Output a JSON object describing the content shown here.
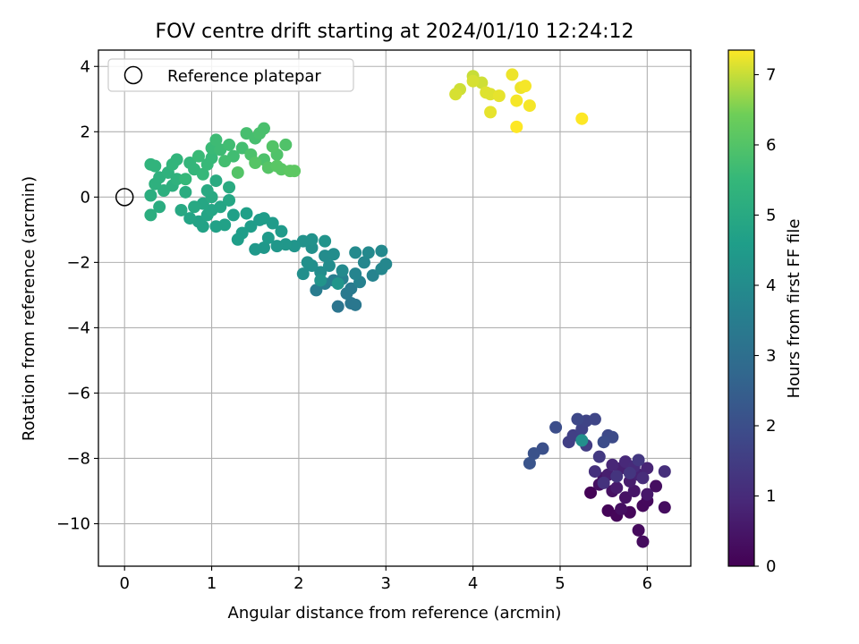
{
  "chart_data": {
    "type": "scatter",
    "title": "FOV centre drift starting at 2024/01/10 12:24:12",
    "xlabel": "Angular distance from reference (arcmin)",
    "ylabel": "Rotation from reference (arcmin)",
    "xlim": [
      -0.3,
      6.5
    ],
    "ylim": [
      -11.3,
      4.5
    ],
    "xticks": [
      0,
      1,
      2,
      3,
      4,
      5,
      6
    ],
    "yticks": [
      -10,
      -8,
      -6,
      -4,
      -2,
      0,
      2,
      4
    ],
    "grid": true,
    "legend": {
      "position": "top-left",
      "entries": [
        {
          "label": "Reference platepar",
          "marker": "open-circle"
        }
      ]
    },
    "reference_point": {
      "x": 0,
      "y": 0
    },
    "colorbar": {
      "label": "Hours from first FF file",
      "range": [
        0,
        7.35
      ],
      "ticks": [
        0,
        1,
        2,
        3,
        4,
        5,
        6,
        7
      ],
      "colormap": "viridis"
    },
    "points": [
      {
        "x": 5.35,
        "y": -9.05,
        "c": 0.05
      },
      {
        "x": 5.55,
        "y": -9.6,
        "c": 0.1
      },
      {
        "x": 5.65,
        "y": -9.75,
        "c": 0.12
      },
      {
        "x": 5.8,
        "y": -9.65,
        "c": 0.15
      },
      {
        "x": 5.95,
        "y": -9.45,
        "c": 0.18
      },
      {
        "x": 6.0,
        "y": -9.3,
        "c": 0.2
      },
      {
        "x": 5.9,
        "y": -10.2,
        "c": 0.22
      },
      {
        "x": 5.95,
        "y": -10.55,
        "c": 0.25
      },
      {
        "x": 6.2,
        "y": -9.5,
        "c": 0.28
      },
      {
        "x": 6.1,
        "y": -8.85,
        "c": 0.3
      },
      {
        "x": 5.7,
        "y": -9.55,
        "c": 0.33
      },
      {
        "x": 5.45,
        "y": -8.8,
        "c": 0.35
      },
      {
        "x": 5.6,
        "y": -9.0,
        "c": 0.38
      },
      {
        "x": 5.75,
        "y": -9.2,
        "c": 0.4
      },
      {
        "x": 5.5,
        "y": -8.6,
        "c": 0.45
      },
      {
        "x": 5.85,
        "y": -9.0,
        "c": 0.5
      },
      {
        "x": 6.0,
        "y": -9.1,
        "c": 0.55
      },
      {
        "x": 5.65,
        "y": -8.9,
        "c": 0.6
      },
      {
        "x": 5.8,
        "y": -8.7,
        "c": 0.65
      },
      {
        "x": 5.55,
        "y": -8.5,
        "c": 0.7
      },
      {
        "x": 5.7,
        "y": -8.3,
        "c": 0.75
      },
      {
        "x": 5.9,
        "y": -8.5,
        "c": 0.8
      },
      {
        "x": 6.0,
        "y": -8.3,
        "c": 0.85
      },
      {
        "x": 5.6,
        "y": -8.2,
        "c": 0.9
      },
      {
        "x": 5.75,
        "y": -8.1,
        "c": 0.95
      },
      {
        "x": 5.85,
        "y": -8.25,
        "c": 1.0
      },
      {
        "x": 5.95,
        "y": -8.6,
        "c": 1.05
      },
      {
        "x": 6.2,
        "y": -8.4,
        "c": 1.1
      },
      {
        "x": 5.4,
        "y": -8.4,
        "c": 1.15
      },
      {
        "x": 5.5,
        "y": -8.75,
        "c": 1.2
      },
      {
        "x": 5.65,
        "y": -8.55,
        "c": 1.25
      },
      {
        "x": 5.8,
        "y": -8.45,
        "c": 1.3
      },
      {
        "x": 5.9,
        "y": -8.05,
        "c": 1.35
      },
      {
        "x": 5.45,
        "y": -7.95,
        "c": 1.4
      },
      {
        "x": 5.3,
        "y": -7.6,
        "c": 1.5
      },
      {
        "x": 5.1,
        "y": -7.5,
        "c": 1.55
      },
      {
        "x": 5.15,
        "y": -7.3,
        "c": 1.6
      },
      {
        "x": 5.25,
        "y": -7.1,
        "c": 1.65
      },
      {
        "x": 5.3,
        "y": -6.85,
        "c": 1.7
      },
      {
        "x": 5.4,
        "y": -6.8,
        "c": 1.75
      },
      {
        "x": 5.2,
        "y": -6.8,
        "c": 1.8
      },
      {
        "x": 5.55,
        "y": -7.3,
        "c": 1.85
      },
      {
        "x": 5.6,
        "y": -7.35,
        "c": 1.9
      },
      {
        "x": 5.5,
        "y": -7.5,
        "c": 1.95
      },
      {
        "x": 4.95,
        "y": -7.05,
        "c": 2.0
      },
      {
        "x": 4.8,
        "y": -7.7,
        "c": 2.05
      },
      {
        "x": 4.7,
        "y": -7.85,
        "c": 2.1
      },
      {
        "x": 4.65,
        "y": -8.15,
        "c": 2.15
      },
      {
        "x": 5.25,
        "y": -7.45,
        "c": 4.1
      },
      {
        "x": 2.45,
        "y": -3.35,
        "c": 3.2
      },
      {
        "x": 2.6,
        "y": -3.25,
        "c": 3.25
      },
      {
        "x": 2.65,
        "y": -3.3,
        "c": 3.3
      },
      {
        "x": 2.55,
        "y": -2.95,
        "c": 3.35
      },
      {
        "x": 2.6,
        "y": -2.8,
        "c": 3.4
      },
      {
        "x": 2.2,
        "y": -2.85,
        "c": 3.45
      },
      {
        "x": 2.3,
        "y": -2.65,
        "c": 3.5
      },
      {
        "x": 2.4,
        "y": -2.55,
        "c": 3.55
      },
      {
        "x": 2.5,
        "y": -2.5,
        "c": 3.6
      },
      {
        "x": 2.7,
        "y": -2.6,
        "c": 3.65
      },
      {
        "x": 2.85,
        "y": -2.4,
        "c": 3.7
      },
      {
        "x": 2.65,
        "y": -2.35,
        "c": 3.75
      },
      {
        "x": 2.75,
        "y": -2.0,
        "c": 3.8
      },
      {
        "x": 2.95,
        "y": -2.2,
        "c": 3.85
      },
      {
        "x": 3.0,
        "y": -2.05,
        "c": 3.85
      },
      {
        "x": 2.95,
        "y": -1.65,
        "c": 3.9
      },
      {
        "x": 2.8,
        "y": -1.7,
        "c": 3.9
      },
      {
        "x": 2.65,
        "y": -1.7,
        "c": 3.95
      },
      {
        "x": 2.5,
        "y": -2.25,
        "c": 3.95
      },
      {
        "x": 2.35,
        "y": -2.1,
        "c": 4.0
      },
      {
        "x": 2.3,
        "y": -1.8,
        "c": 4.0
      },
      {
        "x": 2.4,
        "y": -1.75,
        "c": 4.05
      },
      {
        "x": 2.25,
        "y": -2.3,
        "c": 4.05
      },
      {
        "x": 2.15,
        "y": -2.1,
        "c": 4.1
      },
      {
        "x": 2.05,
        "y": -2.35,
        "c": 4.1
      },
      {
        "x": 2.1,
        "y": -2.0,
        "c": 4.15
      },
      {
        "x": 2.15,
        "y": -1.55,
        "c": 4.15
      },
      {
        "x": 2.05,
        "y": -1.35,
        "c": 4.2
      },
      {
        "x": 2.15,
        "y": -1.3,
        "c": 4.2
      },
      {
        "x": 2.3,
        "y": -1.35,
        "c": 4.25
      },
      {
        "x": 2.25,
        "y": -2.55,
        "c": 4.25
      },
      {
        "x": 2.45,
        "y": -2.65,
        "c": 4.3
      },
      {
        "x": 1.95,
        "y": -1.5,
        "c": 4.3
      },
      {
        "x": 1.85,
        "y": -1.45,
        "c": 4.35
      },
      {
        "x": 1.75,
        "y": -1.5,
        "c": 4.35
      },
      {
        "x": 1.6,
        "y": -1.55,
        "c": 4.4
      },
      {
        "x": 1.5,
        "y": -1.6,
        "c": 4.4
      },
      {
        "x": 1.65,
        "y": -1.25,
        "c": 4.45
      },
      {
        "x": 1.8,
        "y": -1.05,
        "c": 4.45
      },
      {
        "x": 1.7,
        "y": -0.8,
        "c": 4.5
      },
      {
        "x": 1.55,
        "y": -0.7,
        "c": 4.5
      },
      {
        "x": 1.6,
        "y": -0.65,
        "c": 4.55
      },
      {
        "x": 1.45,
        "y": -0.9,
        "c": 4.55
      },
      {
        "x": 1.35,
        "y": -1.1,
        "c": 4.6
      },
      {
        "x": 1.3,
        "y": -1.3,
        "c": 4.6
      },
      {
        "x": 1.4,
        "y": -0.5,
        "c": 4.65
      },
      {
        "x": 1.25,
        "y": -0.55,
        "c": 4.65
      },
      {
        "x": 1.15,
        "y": -0.85,
        "c": 4.7
      },
      {
        "x": 1.05,
        "y": -0.9,
        "c": 4.7
      },
      {
        "x": 0.9,
        "y": -0.9,
        "c": 4.75
      },
      {
        "x": 0.85,
        "y": -0.75,
        "c": 4.75
      },
      {
        "x": 0.75,
        "y": -0.65,
        "c": 4.8
      },
      {
        "x": 0.95,
        "y": -0.55,
        "c": 4.8
      },
      {
        "x": 1.0,
        "y": -0.4,
        "c": 4.85
      },
      {
        "x": 1.1,
        "y": -0.3,
        "c": 4.85
      },
      {
        "x": 1.2,
        "y": -0.1,
        "c": 4.9
      },
      {
        "x": 0.9,
        "y": -0.2,
        "c": 4.9
      },
      {
        "x": 0.8,
        "y": -0.3,
        "c": 4.95
      },
      {
        "x": 0.65,
        "y": -0.4,
        "c": 4.95
      },
      {
        "x": 1.0,
        "y": 0.0,
        "c": 5.0
      },
      {
        "x": 0.95,
        "y": 0.2,
        "c": 5.0
      },
      {
        "x": 1.2,
        "y": 0.3,
        "c": 5.05
      },
      {
        "x": 1.05,
        "y": 0.5,
        "c": 5.05
      },
      {
        "x": 0.7,
        "y": 0.15,
        "c": 5.1
      },
      {
        "x": 0.4,
        "y": -0.3,
        "c": 5.1
      },
      {
        "x": 0.3,
        "y": -0.55,
        "c": 5.15
      },
      {
        "x": 0.3,
        "y": 0.05,
        "c": 5.15
      },
      {
        "x": 0.45,
        "y": 0.2,
        "c": 5.2
      },
      {
        "x": 0.55,
        "y": 0.35,
        "c": 5.2
      },
      {
        "x": 0.35,
        "y": 0.4,
        "c": 5.25
      },
      {
        "x": 0.4,
        "y": 0.6,
        "c": 5.25
      },
      {
        "x": 0.5,
        "y": 0.75,
        "c": 5.3
      },
      {
        "x": 0.6,
        "y": 0.55,
        "c": 5.3
      },
      {
        "x": 0.3,
        "y": 1.0,
        "c": 5.35
      },
      {
        "x": 0.35,
        "y": 0.95,
        "c": 5.35
      },
      {
        "x": 0.55,
        "y": 1.0,
        "c": 5.4
      },
      {
        "x": 0.6,
        "y": 1.15,
        "c": 5.4
      },
      {
        "x": 0.75,
        "y": 1.05,
        "c": 5.45
      },
      {
        "x": 0.8,
        "y": 0.85,
        "c": 5.45
      },
      {
        "x": 0.7,
        "y": 0.55,
        "c": 5.5
      },
      {
        "x": 0.9,
        "y": 0.7,
        "c": 5.5
      },
      {
        "x": 0.95,
        "y": 1.0,
        "c": 5.55
      },
      {
        "x": 1.0,
        "y": 1.2,
        "c": 5.55
      },
      {
        "x": 0.85,
        "y": 1.25,
        "c": 5.6
      },
      {
        "x": 1.0,
        "y": 1.5,
        "c": 5.6
      },
      {
        "x": 1.1,
        "y": 1.45,
        "c": 5.65
      },
      {
        "x": 1.05,
        "y": 1.75,
        "c": 5.65
      },
      {
        "x": 1.2,
        "y": 1.6,
        "c": 5.7
      },
      {
        "x": 1.25,
        "y": 1.25,
        "c": 5.7
      },
      {
        "x": 1.15,
        "y": 1.1,
        "c": 5.75
      },
      {
        "x": 1.35,
        "y": 1.5,
        "c": 5.75
      },
      {
        "x": 1.4,
        "y": 1.95,
        "c": 5.8
      },
      {
        "x": 1.5,
        "y": 1.8,
        "c": 5.8
      },
      {
        "x": 1.55,
        "y": 1.95,
        "c": 5.85
      },
      {
        "x": 1.6,
        "y": 2.1,
        "c": 5.85
      },
      {
        "x": 1.45,
        "y": 1.3,
        "c": 5.9
      },
      {
        "x": 1.6,
        "y": 1.15,
        "c": 5.9
      },
      {
        "x": 1.75,
        "y": 1.3,
        "c": 5.95
      },
      {
        "x": 1.85,
        "y": 1.6,
        "c": 5.95
      },
      {
        "x": 1.7,
        "y": 1.55,
        "c": 6.0
      },
      {
        "x": 1.3,
        "y": 0.75,
        "c": 6.0
      },
      {
        "x": 1.5,
        "y": 1.05,
        "c": 6.05
      },
      {
        "x": 1.65,
        "y": 0.9,
        "c": 6.05
      },
      {
        "x": 1.75,
        "y": 0.95,
        "c": 6.1
      },
      {
        "x": 1.8,
        "y": 0.85,
        "c": 6.1
      },
      {
        "x": 1.9,
        "y": 0.8,
        "c": 6.15
      },
      {
        "x": 1.95,
        "y": 0.8,
        "c": 6.15
      },
      {
        "x": 4.0,
        "y": 3.7,
        "c": 7.0
      },
      {
        "x": 4.1,
        "y": 3.5,
        "c": 7.05
      },
      {
        "x": 3.85,
        "y": 3.3,
        "c": 7.05
      },
      {
        "x": 3.8,
        "y": 3.15,
        "c": 7.1
      },
      {
        "x": 4.0,
        "y": 3.55,
        "c": 7.1
      },
      {
        "x": 4.15,
        "y": 3.2,
        "c": 7.15
      },
      {
        "x": 4.2,
        "y": 3.15,
        "c": 7.15
      },
      {
        "x": 4.3,
        "y": 3.1,
        "c": 7.2
      },
      {
        "x": 4.2,
        "y": 2.6,
        "c": 7.2
      },
      {
        "x": 4.45,
        "y": 3.75,
        "c": 7.25
      },
      {
        "x": 4.55,
        "y": 3.35,
        "c": 7.25
      },
      {
        "x": 4.6,
        "y": 3.4,
        "c": 7.3
      },
      {
        "x": 4.5,
        "y": 2.95,
        "c": 7.3
      },
      {
        "x": 4.65,
        "y": 2.8,
        "c": 7.3
      },
      {
        "x": 4.5,
        "y": 2.15,
        "c": 7.35
      },
      {
        "x": 5.25,
        "y": 2.4,
        "c": 7.35
      }
    ]
  }
}
